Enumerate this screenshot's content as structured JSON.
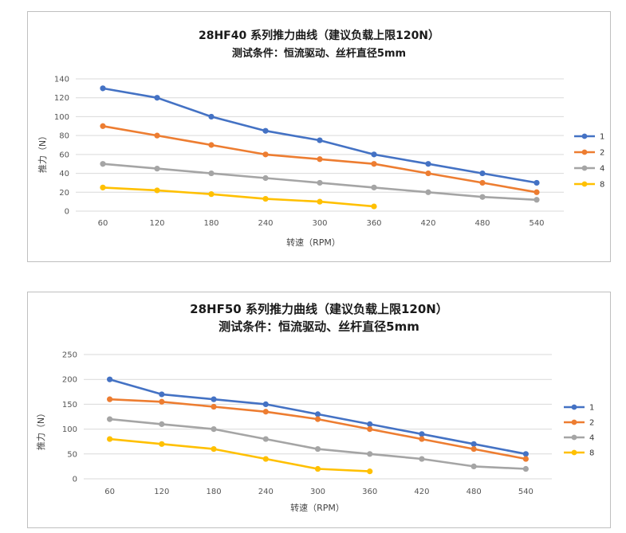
{
  "chart_data": [
    {
      "type": "line",
      "title": "28HF40 系列推力曲线（建议负载上限120N）",
      "subtitle": "测试条件：恒流驱动、丝杆直径5mm",
      "xlabel": "转速（RPM）",
      "ylabel": "推力（N）",
      "categories": [
        "60",
        "120",
        "180",
        "240",
        "300",
        "360",
        "420",
        "480",
        "540"
      ],
      "ylim": [
        0,
        140
      ],
      "yticks": [
        0,
        20,
        40,
        60,
        80,
        100,
        120,
        140
      ],
      "grid": true,
      "legend_position": "right",
      "series": [
        {
          "name": "1",
          "color": "#4472c4",
          "values": [
            130,
            120,
            100,
            85,
            75,
            60,
            50,
            40,
            30
          ]
        },
        {
          "name": "2",
          "color": "#ed7d31",
          "values": [
            90,
            80,
            70,
            60,
            55,
            50,
            40,
            30,
            20
          ]
        },
        {
          "name": "4",
          "color": "#a5a5a5",
          "values": [
            50,
            45,
            40,
            35,
            30,
            25,
            20,
            15,
            12
          ]
        },
        {
          "name": "8",
          "color": "#ffc000",
          "values": [
            25,
            22,
            18,
            13,
            10,
            5,
            null,
            null,
            null
          ]
        }
      ]
    },
    {
      "type": "line",
      "title": "28HF50 系列推力曲线（建议负载上限120N）",
      "subtitle": "测试条件：恒流驱动、丝杆直径5mm",
      "xlabel": "转速（RPM）",
      "ylabel": "推力（N）",
      "categories": [
        "60",
        "120",
        "180",
        "240",
        "300",
        "360",
        "420",
        "480",
        "540"
      ],
      "ylim": [
        0,
        250
      ],
      "yticks": [
        0,
        50,
        100,
        150,
        200,
        250
      ],
      "grid": true,
      "legend_position": "right",
      "series": [
        {
          "name": "1",
          "color": "#4472c4",
          "values": [
            200,
            170,
            160,
            150,
            130,
            110,
            90,
            70,
            50
          ]
        },
        {
          "name": "2",
          "color": "#ed7d31",
          "values": [
            160,
            155,
            145,
            135,
            120,
            100,
            80,
            60,
            40
          ]
        },
        {
          "name": "4",
          "color": "#a5a5a5",
          "values": [
            120,
            110,
            100,
            80,
            60,
            50,
            40,
            25,
            20
          ]
        },
        {
          "name": "8",
          "color": "#ffc000",
          "values": [
            80,
            70,
            60,
            40,
            20,
            15,
            null,
            null,
            null
          ]
        }
      ]
    }
  ]
}
